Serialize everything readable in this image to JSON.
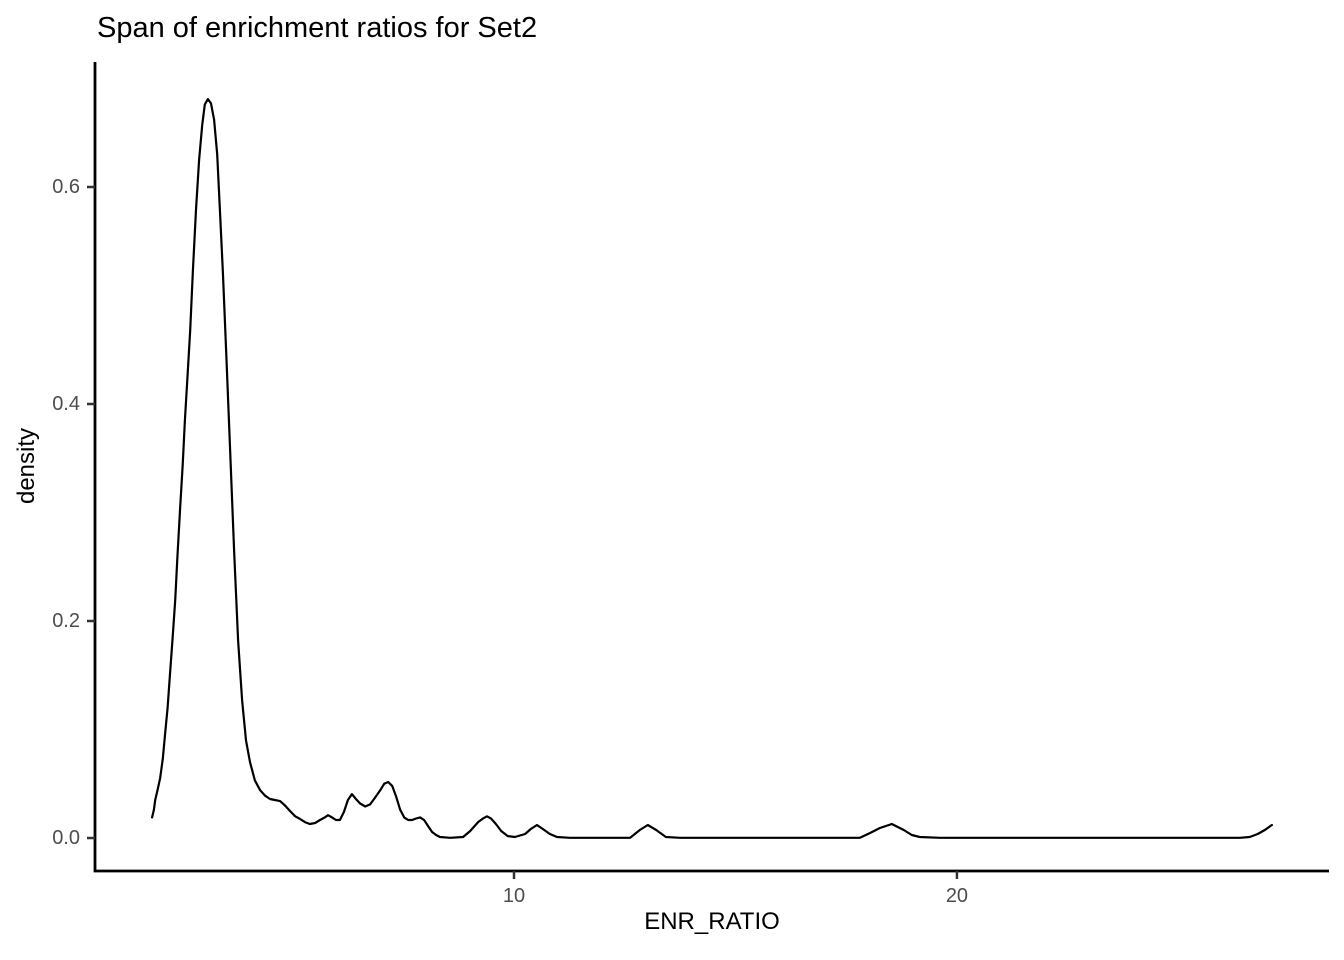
{
  "figure": {
    "background_color": "#ffffff"
  },
  "chart_data": {
    "type": "line",
    "subtype": "kernel-density-curve",
    "title": "Span of enrichment ratios for Set2",
    "xlabel": "ENR_RATIO",
    "ylabel": "density",
    "xlim": [
      0.54,
      28.4
    ],
    "ylim": [
      -0.0304,
      0.7152
    ],
    "x_ticks": [
      10,
      20
    ],
    "x_tick_labels": [
      "10",
      "20"
    ],
    "y_ticks": [
      0.0,
      0.2,
      0.4,
      0.6
    ],
    "y_tick_labels": [
      "0.0",
      "0.2",
      "0.4",
      "0.6"
    ],
    "grid": false,
    "legend": false,
    "line_color": "#000000",
    "axis_line_color": "#000000",
    "tick_mark_color": "#333333",
    "tick_label_color": "#4d4d4d",
    "title_color": "#000000",
    "peak_summary": {
      "main_peak": {
        "x": 3.1,
        "density": 0.68
      },
      "minor_peaks_x": [
        6.3,
        7.2,
        9.4,
        10.5,
        13.0,
        18.5,
        27.1
      ]
    },
    "series": [
      {
        "name": "density of ENR_RATIO",
        "points": [
          [
            1.83,
            0.019
          ],
          [
            1.87,
            0.026
          ],
          [
            1.9,
            0.035
          ],
          [
            1.95,
            0.044
          ],
          [
            2.01,
            0.055
          ],
          [
            2.07,
            0.073
          ],
          [
            2.12,
            0.095
          ],
          [
            2.18,
            0.12
          ],
          [
            2.23,
            0.15
          ],
          [
            2.29,
            0.183
          ],
          [
            2.35,
            0.219
          ],
          [
            2.4,
            0.259
          ],
          [
            2.46,
            0.302
          ],
          [
            2.52,
            0.344
          ],
          [
            2.57,
            0.385
          ],
          [
            2.63,
            0.427
          ],
          [
            2.69,
            0.468
          ],
          [
            2.75,
            0.523
          ],
          [
            2.82,
            0.579
          ],
          [
            2.89,
            0.625
          ],
          [
            2.96,
            0.657
          ],
          [
            3.02,
            0.676
          ],
          [
            3.09,
            0.681
          ],
          [
            3.16,
            0.677
          ],
          [
            3.23,
            0.662
          ],
          [
            3.3,
            0.63
          ],
          [
            3.36,
            0.579
          ],
          [
            3.43,
            0.519
          ],
          [
            3.5,
            0.45
          ],
          [
            3.59,
            0.358
          ],
          [
            3.68,
            0.265
          ],
          [
            3.77,
            0.182
          ],
          [
            3.86,
            0.127
          ],
          [
            3.95,
            0.09
          ],
          [
            4.04,
            0.07
          ],
          [
            4.15,
            0.053
          ],
          [
            4.27,
            0.044
          ],
          [
            4.38,
            0.039
          ],
          [
            4.49,
            0.036
          ],
          [
            4.6,
            0.035
          ],
          [
            4.72,
            0.034
          ],
          [
            4.83,
            0.03
          ],
          [
            4.94,
            0.025
          ],
          [
            5.06,
            0.02
          ],
          [
            5.17,
            0.0175
          ],
          [
            5.28,
            0.0147
          ],
          [
            5.39,
            0.0129
          ],
          [
            5.51,
            0.0138
          ],
          [
            5.62,
            0.0166
          ],
          [
            5.73,
            0.019
          ],
          [
            5.8,
            0.021
          ],
          [
            5.89,
            0.019
          ],
          [
            5.98,
            0.0166
          ],
          [
            6.07,
            0.0166
          ],
          [
            6.16,
            0.024
          ],
          [
            6.25,
            0.035
          ],
          [
            6.34,
            0.0405
          ],
          [
            6.43,
            0.036
          ],
          [
            6.52,
            0.032
          ],
          [
            6.64,
            0.029
          ],
          [
            6.75,
            0.031
          ],
          [
            6.86,
            0.037
          ],
          [
            6.98,
            0.044
          ],
          [
            7.07,
            0.05
          ],
          [
            7.16,
            0.0516
          ],
          [
            7.25,
            0.048
          ],
          [
            7.34,
            0.038
          ],
          [
            7.43,
            0.026
          ],
          [
            7.52,
            0.019
          ],
          [
            7.61,
            0.0166
          ],
          [
            7.7,
            0.0166
          ],
          [
            7.79,
            0.018
          ],
          [
            7.88,
            0.019
          ],
          [
            7.97,
            0.0166
          ],
          [
            8.06,
            0.011
          ],
          [
            8.15,
            0.0055
          ],
          [
            8.24,
            0.0028
          ],
          [
            8.33,
            0.0009
          ],
          [
            8.56,
            0.0002
          ],
          [
            8.85,
            0.0009
          ],
          [
            9.01,
            0.0065
          ],
          [
            9.19,
            0.0147
          ],
          [
            9.3,
            0.018
          ],
          [
            9.39,
            0.02
          ],
          [
            9.48,
            0.018
          ],
          [
            9.59,
            0.0129
          ],
          [
            9.71,
            0.0065
          ],
          [
            9.86,
            0.0018
          ],
          [
            10.02,
            0.0009
          ],
          [
            10.25,
            0.0037
          ],
          [
            10.38,
            0.0083
          ],
          [
            10.52,
            0.012
          ],
          [
            10.65,
            0.0083
          ],
          [
            10.81,
            0.0037
          ],
          [
            10.97,
            0.0009
          ],
          [
            11.26,
            0.0002
          ],
          [
            12.62,
            0.0002
          ],
          [
            12.84,
            0.0074
          ],
          [
            13.02,
            0.012
          ],
          [
            13.21,
            0.0074
          ],
          [
            13.43,
            0.0009
          ],
          [
            13.75,
            0.0002
          ],
          [
            17.81,
            0.0002
          ],
          [
            18.04,
            0.0046
          ],
          [
            18.26,
            0.0092
          ],
          [
            18.53,
            0.0129
          ],
          [
            18.8,
            0.0074
          ],
          [
            18.98,
            0.0028
          ],
          [
            19.16,
            0.0009
          ],
          [
            19.62,
            0.0002
          ],
          [
            26.39,
            0.0002
          ],
          [
            26.61,
            0.0009
          ],
          [
            26.79,
            0.0037
          ],
          [
            26.95,
            0.0074
          ],
          [
            27.11,
            0.012
          ]
        ]
      }
    ]
  }
}
